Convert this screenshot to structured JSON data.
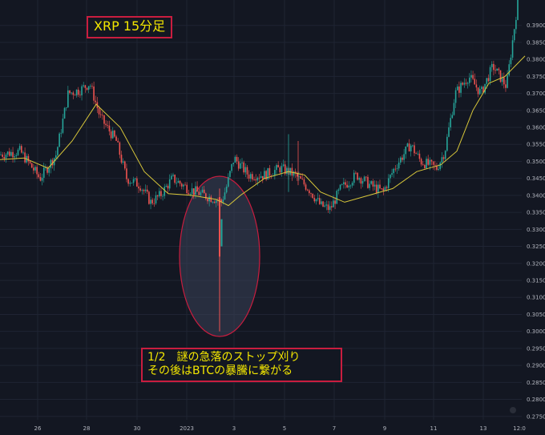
{
  "title": "XRP 15分足",
  "annotation": {
    "line1": "1/2　謎の急落のストップ刈り",
    "line2": "その後はBTCの暴騰に繋がる"
  },
  "colors": {
    "background": "#131722",
    "grid": "#1f2433",
    "candle_up": "#26a69a",
    "candle_down": "#ef5350",
    "moving_average": "#d8c73a",
    "highlight_ellipse_fill": "#3a4257",
    "highlight_ellipse_stroke": "#c91d3f",
    "label_text": "#f2e600",
    "label_border": "#c91d3f"
  },
  "chart_data": {
    "type": "candlestick",
    "title": "XRP 15分足",
    "ylim": [
      0.274,
      0.397
    ],
    "yticks": [
      "0.3900",
      "0.3850",
      "0.3800",
      "0.3750",
      "0.3700",
      "0.3650",
      "0.3600",
      "0.3550",
      "0.3500",
      "0.3450",
      "0.3400",
      "0.3350",
      "0.3300",
      "0.3250",
      "0.3200",
      "0.3150",
      "0.3100",
      "0.3050",
      "0.3000",
      "0.2950",
      "0.2900",
      "0.2850",
      "0.2800",
      "0.2750"
    ],
    "xticks": [
      "26",
      "28",
      "30",
      "2023",
      "3",
      "5",
      "7",
      "9",
      "11",
      "13",
      "12:0"
    ],
    "grid": true,
    "price_path": [
      {
        "t": 0,
        "v": 0.352
      },
      {
        "t": 25,
        "v": 0.353
      },
      {
        "t": 50,
        "v": 0.345
      },
      {
        "t": 70,
        "v": 0.352
      },
      {
        "t": 85,
        "v": 0.37
      },
      {
        "t": 100,
        "v": 0.371
      },
      {
        "t": 112,
        "v": 0.373
      },
      {
        "t": 125,
        "v": 0.363
      },
      {
        "t": 145,
        "v": 0.356
      },
      {
        "t": 158,
        "v": 0.345
      },
      {
        "t": 175,
        "v": 0.343
      },
      {
        "t": 188,
        "v": 0.338
      },
      {
        "t": 200,
        "v": 0.34
      },
      {
        "t": 215,
        "v": 0.345
      },
      {
        "t": 235,
        "v": 0.342
      },
      {
        "t": 255,
        "v": 0.34
      },
      {
        "t": 268,
        "v": 0.339
      },
      {
        "t": 276,
        "v": 0.338
      },
      {
        "t": 282,
        "v": 0.342
      },
      {
        "t": 292,
        "v": 0.351
      },
      {
        "t": 310,
        "v": 0.346
      },
      {
        "t": 330,
        "v": 0.346
      },
      {
        "t": 350,
        "v": 0.348
      },
      {
        "t": 368,
        "v": 0.346
      },
      {
        "t": 385,
        "v": 0.342
      },
      {
        "t": 400,
        "v": 0.337
      },
      {
        "t": 412,
        "v": 0.336
      },
      {
        "t": 425,
        "v": 0.342
      },
      {
        "t": 445,
        "v": 0.346
      },
      {
        "t": 462,
        "v": 0.343
      },
      {
        "t": 478,
        "v": 0.341
      },
      {
        "t": 492,
        "v": 0.348
      },
      {
        "t": 512,
        "v": 0.355
      },
      {
        "t": 525,
        "v": 0.35
      },
      {
        "t": 545,
        "v": 0.348
      },
      {
        "t": 555,
        "v": 0.353
      },
      {
        "t": 568,
        "v": 0.37
      },
      {
        "t": 585,
        "v": 0.375
      },
      {
        "t": 600,
        "v": 0.37
      },
      {
        "t": 615,
        "v": 0.378
      },
      {
        "t": 632,
        "v": 0.372
      },
      {
        "t": 646,
        "v": 0.397
      }
    ],
    "wick_event": {
      "t": 274,
      "low": 0.3,
      "high": 0.342
    },
    "sma_points": [
      {
        "t": 0,
        "v": 0.3505
      },
      {
        "t": 30,
        "v": 0.351
      },
      {
        "t": 60,
        "v": 0.348
      },
      {
        "t": 90,
        "v": 0.356
      },
      {
        "t": 120,
        "v": 0.3668
      },
      {
        "t": 150,
        "v": 0.36
      },
      {
        "t": 180,
        "v": 0.347
      },
      {
        "t": 210,
        "v": 0.3405
      },
      {
        "t": 240,
        "v": 0.34
      },
      {
        "t": 270,
        "v": 0.3388
      },
      {
        "t": 285,
        "v": 0.337
      },
      {
        "t": 300,
        "v": 0.34
      },
      {
        "t": 330,
        "v": 0.345
      },
      {
        "t": 360,
        "v": 0.347
      },
      {
        "t": 380,
        "v": 0.346
      },
      {
        "t": 400,
        "v": 0.341
      },
      {
        "t": 430,
        "v": 0.338
      },
      {
        "t": 460,
        "v": 0.34
      },
      {
        "t": 490,
        "v": 0.342
      },
      {
        "t": 520,
        "v": 0.347
      },
      {
        "t": 550,
        "v": 0.349
      },
      {
        "t": 570,
        "v": 0.353
      },
      {
        "t": 590,
        "v": 0.365
      },
      {
        "t": 610,
        "v": 0.373
      },
      {
        "t": 630,
        "v": 0.375
      },
      {
        "t": 655,
        "v": 0.381
      }
    ]
  }
}
